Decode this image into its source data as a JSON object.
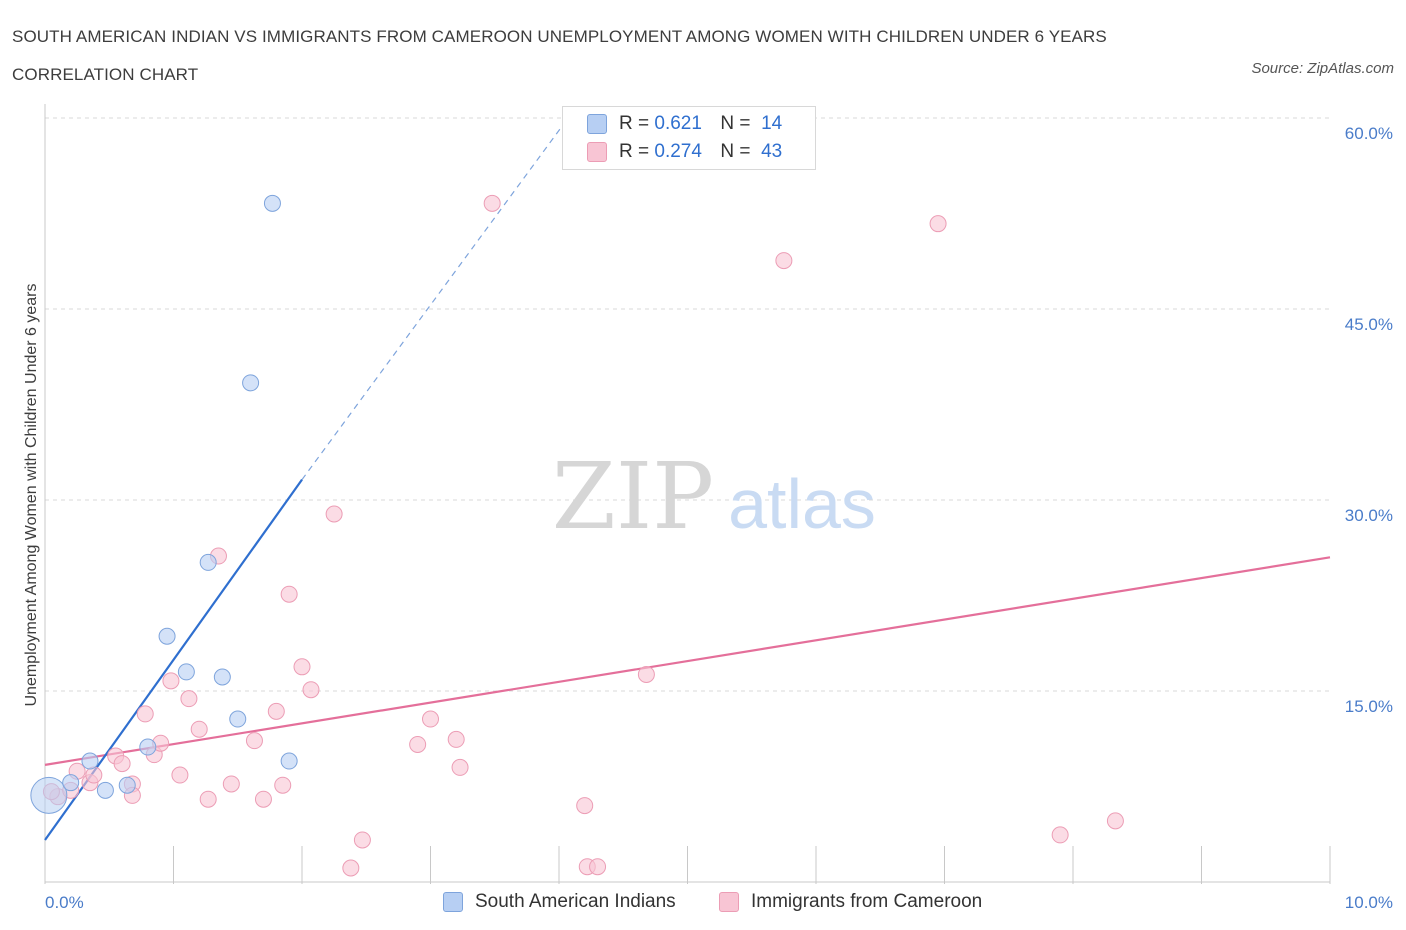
{
  "title": "SOUTH AMERICAN INDIAN VS IMMIGRANTS FROM CAMEROON UNEMPLOYMENT AMONG WOMEN WITH CHILDREN UNDER 6 YEARS CORRELATION CHART",
  "source": "Source: ZipAtlas.com",
  "watermark": {
    "zip": "ZIP",
    "atlas": "atlas"
  },
  "legend": {
    "r_label": "R =",
    "n_label": "N =",
    "series1": {
      "r": "0.621",
      "n": "14"
    },
    "series2": {
      "r": "0.274",
      "n": "43"
    }
  },
  "colors": {
    "blue_fill": "#b7cff3",
    "blue_stroke": "#7ea4dc",
    "blue_line": "#2f6fcf",
    "pink_fill": "#f8c5d4",
    "pink_stroke": "#ec9db5",
    "pink_line": "#e46f9a",
    "tick_text": "#4a7cc9",
    "grid": "#d9d9d9"
  },
  "chart_data": {
    "type": "scatter",
    "title": "SOUTH AMERICAN INDIAN VS IMMIGRANTS FROM CAMEROON UNEMPLOYMENT AMONG WOMEN WITH CHILDREN UNDER 6 YEARS CORRELATION CHART",
    "xlabel": "",
    "ylabel": "Unemployment Among Women with Children Under 6 years",
    "xlim": [
      0,
      10
    ],
    "ylim": [
      0,
      60
    ],
    "x_tick_labels": [
      {
        "value": 0,
        "label": "0.0%"
      },
      {
        "value": 10,
        "label": "10.0%"
      }
    ],
    "y_tick_labels": [
      {
        "value": 15,
        "label": "15.0%"
      },
      {
        "value": 30,
        "label": "30.0%"
      },
      {
        "value": 45,
        "label": "45.0%"
      },
      {
        "value": 60,
        "label": "60.0%"
      }
    ],
    "legend_position": "bottom",
    "series": [
      {
        "name": "South American Indians",
        "color": "blue",
        "r": 0.621,
        "n": 14,
        "points": [
          [
            0.03,
            6.8,
            "large"
          ],
          [
            0.2,
            7.8
          ],
          [
            0.35,
            9.5
          ],
          [
            0.47,
            7.2
          ],
          [
            0.64,
            7.6
          ],
          [
            0.8,
            10.6
          ],
          [
            0.95,
            19.3
          ],
          [
            1.1,
            16.5
          ],
          [
            1.27,
            25.1
          ],
          [
            1.38,
            16.1
          ],
          [
            1.5,
            12.8
          ],
          [
            1.6,
            39.2
          ],
          [
            1.77,
            53.3
          ],
          [
            1.9,
            9.5
          ]
        ],
        "trend": {
          "x1": 0.0,
          "y1": 3.3,
          "x2": 2.0,
          "y2": 31.6,
          "dashed_to": [
            4.1,
            60.4
          ]
        }
      },
      {
        "name": "Immigrants from Cameroon",
        "color": "pink",
        "r": 0.274,
        "n": 43,
        "points": [
          [
            0.1,
            6.7
          ],
          [
            0.2,
            7.2
          ],
          [
            0.25,
            8.7
          ],
          [
            0.35,
            7.8
          ],
          [
            0.38,
            8.4
          ],
          [
            0.55,
            9.9
          ],
          [
            0.6,
            9.3
          ],
          [
            0.68,
            7.7
          ],
          [
            0.68,
            6.8
          ],
          [
            0.78,
            13.2
          ],
          [
            0.85,
            10.0
          ],
          [
            0.9,
            10.9
          ],
          [
            0.98,
            15.8
          ],
          [
            1.05,
            8.4
          ],
          [
            1.12,
            14.4
          ],
          [
            1.2,
            12.0
          ],
          [
            1.27,
            6.5
          ],
          [
            1.35,
            25.6
          ],
          [
            1.45,
            7.7
          ],
          [
            1.63,
            11.1
          ],
          [
            1.7,
            6.5
          ],
          [
            1.8,
            13.4
          ],
          [
            1.85,
            7.6
          ],
          [
            1.9,
            22.6
          ],
          [
            2.0,
            16.9
          ],
          [
            2.07,
            15.1
          ],
          [
            2.25,
            28.9
          ],
          [
            2.38,
            1.1
          ],
          [
            2.47,
            3.3
          ],
          [
            2.9,
            10.8
          ],
          [
            3.0,
            12.8
          ],
          [
            3.2,
            11.2
          ],
          [
            3.23,
            9.0
          ],
          [
            3.48,
            53.3
          ],
          [
            4.2,
            6.0
          ],
          [
            4.22,
            1.2
          ],
          [
            4.3,
            1.2
          ],
          [
            4.68,
            16.3
          ],
          [
            5.75,
            48.8
          ],
          [
            6.95,
            51.7
          ],
          [
            7.9,
            3.7
          ],
          [
            8.33,
            4.8
          ],
          [
            0.05,
            7.1
          ]
        ],
        "trend": {
          "x1": 0.0,
          "y1": 9.2,
          "x2": 10.0,
          "y2": 25.5
        }
      }
    ]
  }
}
